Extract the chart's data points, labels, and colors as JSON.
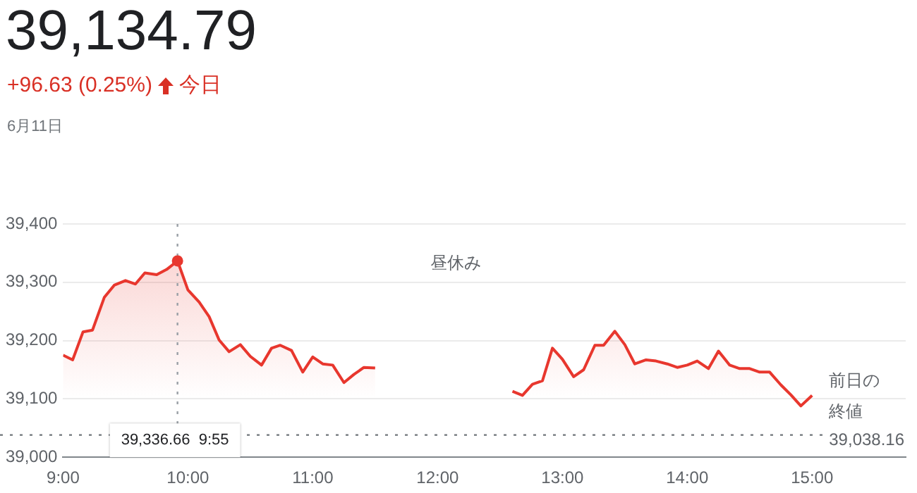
{
  "chart_data": {
    "type": "area",
    "title": "39,134.79",
    "subtitle": "+96.63 (0.25%)",
    "annotations": [
      "今日",
      "6月11日",
      "昼休み",
      "39,336.66  9:55",
      "39,038.16"
    ],
    "x": [
      9.0,
      9.077,
      9.16,
      9.236,
      9.33,
      9.41,
      9.5,
      9.58,
      9.655,
      9.75,
      9.83,
      9.9167,
      10.0,
      10.09,
      10.17,
      10.25,
      10.33,
      10.42,
      10.5,
      10.59,
      10.67,
      10.74,
      10.83,
      10.92,
      11.0,
      11.08,
      11.16,
      11.25,
      11.33,
      11.41,
      11.5,
      12.0,
      12.6,
      12.68,
      12.76,
      12.84,
      12.92,
      13.0,
      13.09,
      13.17,
      13.26,
      13.33,
      13.42,
      13.5,
      13.58,
      13.67,
      13.75,
      13.84,
      13.92,
      14.0,
      14.08,
      14.17,
      14.25,
      14.34,
      14.42,
      14.5,
      14.58,
      14.66,
      14.75,
      14.83,
      14.91,
      15.0
    ],
    "series": [
      {
        "color": "#e8372e",
        "values": [
          39175,
          39167,
          39215,
          39218,
          39274,
          39295,
          39303,
          39297,
          39316,
          39313,
          39322,
          39336.66,
          39287,
          39266,
          39241,
          39201,
          39181,
          39193,
          39173,
          39158,
          39187,
          39192,
          39183,
          39146,
          39172,
          39160,
          39158,
          39128,
          39142,
          39154,
          39153,
          null,
          39113,
          39106,
          39125,
          39131,
          39187,
          39168,
          39138,
          39150,
          39192,
          39192,
          39216,
          39193,
          39160,
          39167,
          39165,
          39160,
          39154,
          39158,
          39165,
          39152,
          39182,
          39158,
          39152,
          39152,
          39146,
          39146,
          39124,
          39107,
          39088,
          39106
        ]
      }
    ],
    "xlim": [
      9,
      15.75
    ],
    "xticks": [
      {
        "value": 9,
        "label": "9:00"
      },
      {
        "value": 10,
        "label": "10:00"
      },
      {
        "value": 11,
        "label": "11:00"
      },
      {
        "value": 12,
        "label": "12:00"
      },
      {
        "value": 13,
        "label": "13:00"
      },
      {
        "value": 14,
        "label": "14:00"
      },
      {
        "value": 15,
        "label": "15:00"
      }
    ],
    "ylim": [
      39000,
      39400
    ],
    "yticks": [
      {
        "value": 39000,
        "label": "39,000"
      },
      {
        "value": 39100,
        "label": "39,100"
      },
      {
        "value": 39200,
        "label": "39,200"
      },
      {
        "value": 39300,
        "label": "39,300"
      },
      {
        "value": 39400,
        "label": "39,400"
      }
    ],
    "ref_lines": [
      {
        "axis": "y",
        "value": 39038.16,
        "label": "前日の終値",
        "color": "#70757a",
        "line_style": "dotted"
      },
      {
        "axis": "x",
        "value": 9.9167,
        "label": null,
        "color": "#9aa0a6",
        "line_style": "dotted"
      }
    ],
    "grid": "y",
    "legend": false,
    "marker": "none",
    "line_style": "solid"
  }
}
